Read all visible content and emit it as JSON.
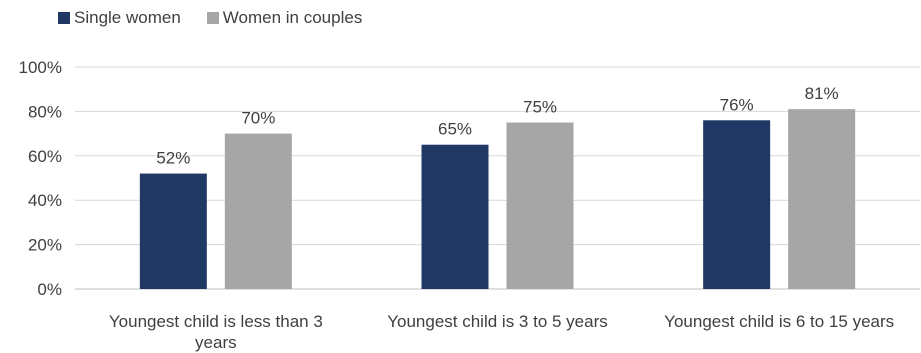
{
  "chart_data": {
    "type": "bar",
    "categories": [
      "Youngest child is less than 3 years",
      "Youngest child is 3 to 5 years",
      "Youngest child is 6 to 15 years"
    ],
    "category_lines": [
      [
        "Youngest child is less than 3",
        "years"
      ],
      [
        "Youngest child is 3 to 5 years"
      ],
      [
        "Youngest child is 6 to 15 years"
      ]
    ],
    "series": [
      {
        "name": "Single women",
        "values": [
          52,
          65,
          76
        ],
        "labels": [
          "52%",
          "65%",
          "76%"
        ],
        "color": "#203864"
      },
      {
        "name": "Women in couples",
        "values": [
          70,
          75,
          81
        ],
        "labels": [
          "70%",
          "75%",
          "81%"
        ],
        "color": "#a6a6a6"
      }
    ],
    "ylim": [
      0,
      100
    ],
    "yticks": [
      "0%",
      "20%",
      "40%",
      "60%",
      "80%",
      "100%"
    ],
    "grid": true,
    "legend_position": "top-left"
  }
}
